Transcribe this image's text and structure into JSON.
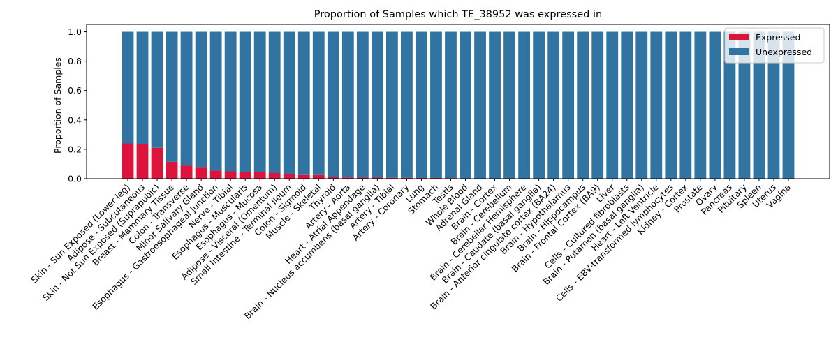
{
  "chart_data": {
    "type": "bar",
    "stacked": true,
    "title": "Proportion of Samples which TE_38952 was expressed in",
    "xlabel": "",
    "ylabel": "Proportion of Samples",
    "ylim": [
      0,
      1.05
    ],
    "yticks": [
      0.0,
      0.2,
      0.4,
      0.6,
      0.8,
      1.0
    ],
    "ytick_labels": [
      "0.0",
      "0.2",
      "0.4",
      "0.6",
      "0.8",
      "1.0"
    ],
    "legend_position": "top-right",
    "categories": [
      "Skin - Sun Exposed (Lower leg)",
      "Adipose - Subcutaneous",
      "Skin - Not Sun Exposed (Suprapubic)",
      "Breast - Mammary Tissue",
      "Colon - Transverse",
      "Minor Salivary Gland",
      "Esophagus - Gastroesophageal Junction",
      "Nerve - Tibial",
      "Esophagus - Muscularis",
      "Esophagus - Mucosa",
      "Adipose - Visceral (Omentum)",
      "Small Intestine - Terminal Ileum",
      "Colon - Sigmoid",
      "Muscle - Skeletal",
      "Thyroid",
      "Artery - Aorta",
      "Heart - Atrial Appendage",
      "Brain - Nucleus accumbens (basal ganglia)",
      "Artery - Tibial",
      "Artery - Coronary",
      "Lung",
      "Stomach",
      "Testis",
      "Whole Blood",
      "Adrenal Gland",
      "Brain - Cortex",
      "Brain - Cerebellum",
      "Brain - Cerebellar Hemisphere",
      "Brain - Caudate (basal ganglia)",
      "Brain - Anterior cingulate cortex (BA24)",
      "Brain - Hypothalamus",
      "Brain - Hippocampus",
      "Brain - Frontal Cortex (BA9)",
      "Liver",
      "Cells - Cultured fibroblasts",
      "Brain - Putamen (basal ganglia)",
      "Heart - Left Ventricle",
      "Cells - EBV-transformed lymphocytes",
      "Kidney - Cortex",
      "Prostate",
      "Ovary",
      "Pancreas",
      "Pituitary",
      "Spleen",
      "Uterus",
      "Vagina"
    ],
    "series": [
      {
        "name": "Expressed",
        "color": "#dc143c",
        "values": [
          0.24,
          0.235,
          0.21,
          0.115,
          0.088,
          0.08,
          0.055,
          0.05,
          0.045,
          0.045,
          0.038,
          0.03,
          0.025,
          0.025,
          0.012,
          0.008,
          0.007,
          0.007,
          0.006,
          0.006,
          0.005,
          0.005,
          0.004,
          0,
          0,
          0,
          0,
          0,
          0,
          0,
          0,
          0,
          0,
          0,
          0,
          0,
          0,
          0,
          0,
          0,
          0,
          0,
          0,
          0,
          0,
          0
        ]
      },
      {
        "name": "Unexpressed",
        "color": "#3274a1",
        "values": [
          0.76,
          0.765,
          0.79,
          0.885,
          0.912,
          0.92,
          0.945,
          0.95,
          0.955,
          0.955,
          0.962,
          0.97,
          0.975,
          0.975,
          0.988,
          0.992,
          0.993,
          0.993,
          0.994,
          0.994,
          0.995,
          0.995,
          0.996,
          1,
          1,
          1,
          1,
          1,
          1,
          1,
          1,
          1,
          1,
          1,
          1,
          1,
          1,
          1,
          1,
          1,
          1,
          1,
          1,
          1,
          1,
          1
        ]
      }
    ]
  }
}
